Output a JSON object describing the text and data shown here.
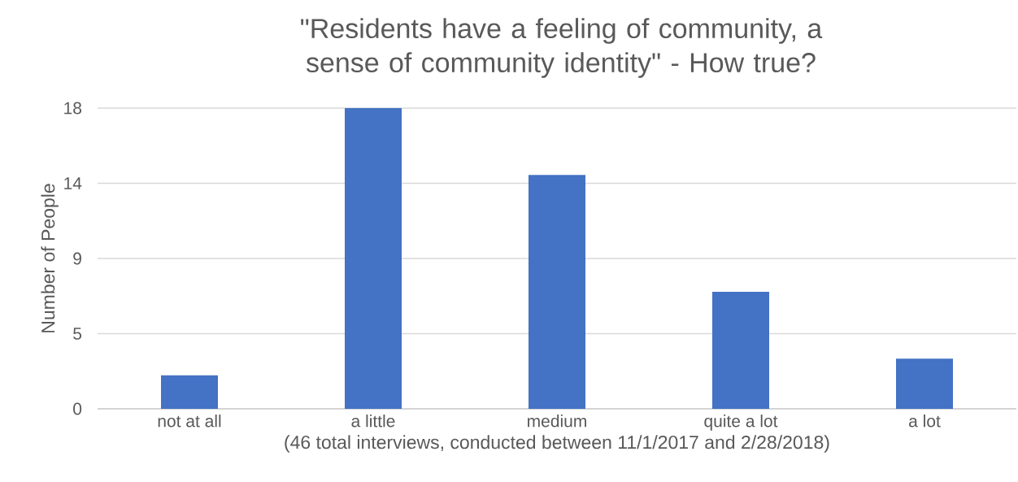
{
  "chart_data": {
    "type": "bar",
    "title": "\"Residents have a feeling of community, a sense of community identity\" - How true?",
    "categories": [
      "not at all",
      "a little",
      "medium",
      "quite a lot",
      "a lot"
    ],
    "values": [
      2,
      18,
      14,
      7,
      3
    ],
    "color": "#4472c4",
    "xlabel": "(46 total interviews, conducted between 11/1/2017 and 2/28/2018)",
    "ylabel": "Number of People",
    "ylim": [
      0,
      18
    ],
    "yticks": [
      0,
      {
        "value": 4.5,
        "label": "5"
      },
      9,
      {
        "value": 13.5,
        "label": "14"
      },
      18
    ],
    "grid": "y"
  }
}
